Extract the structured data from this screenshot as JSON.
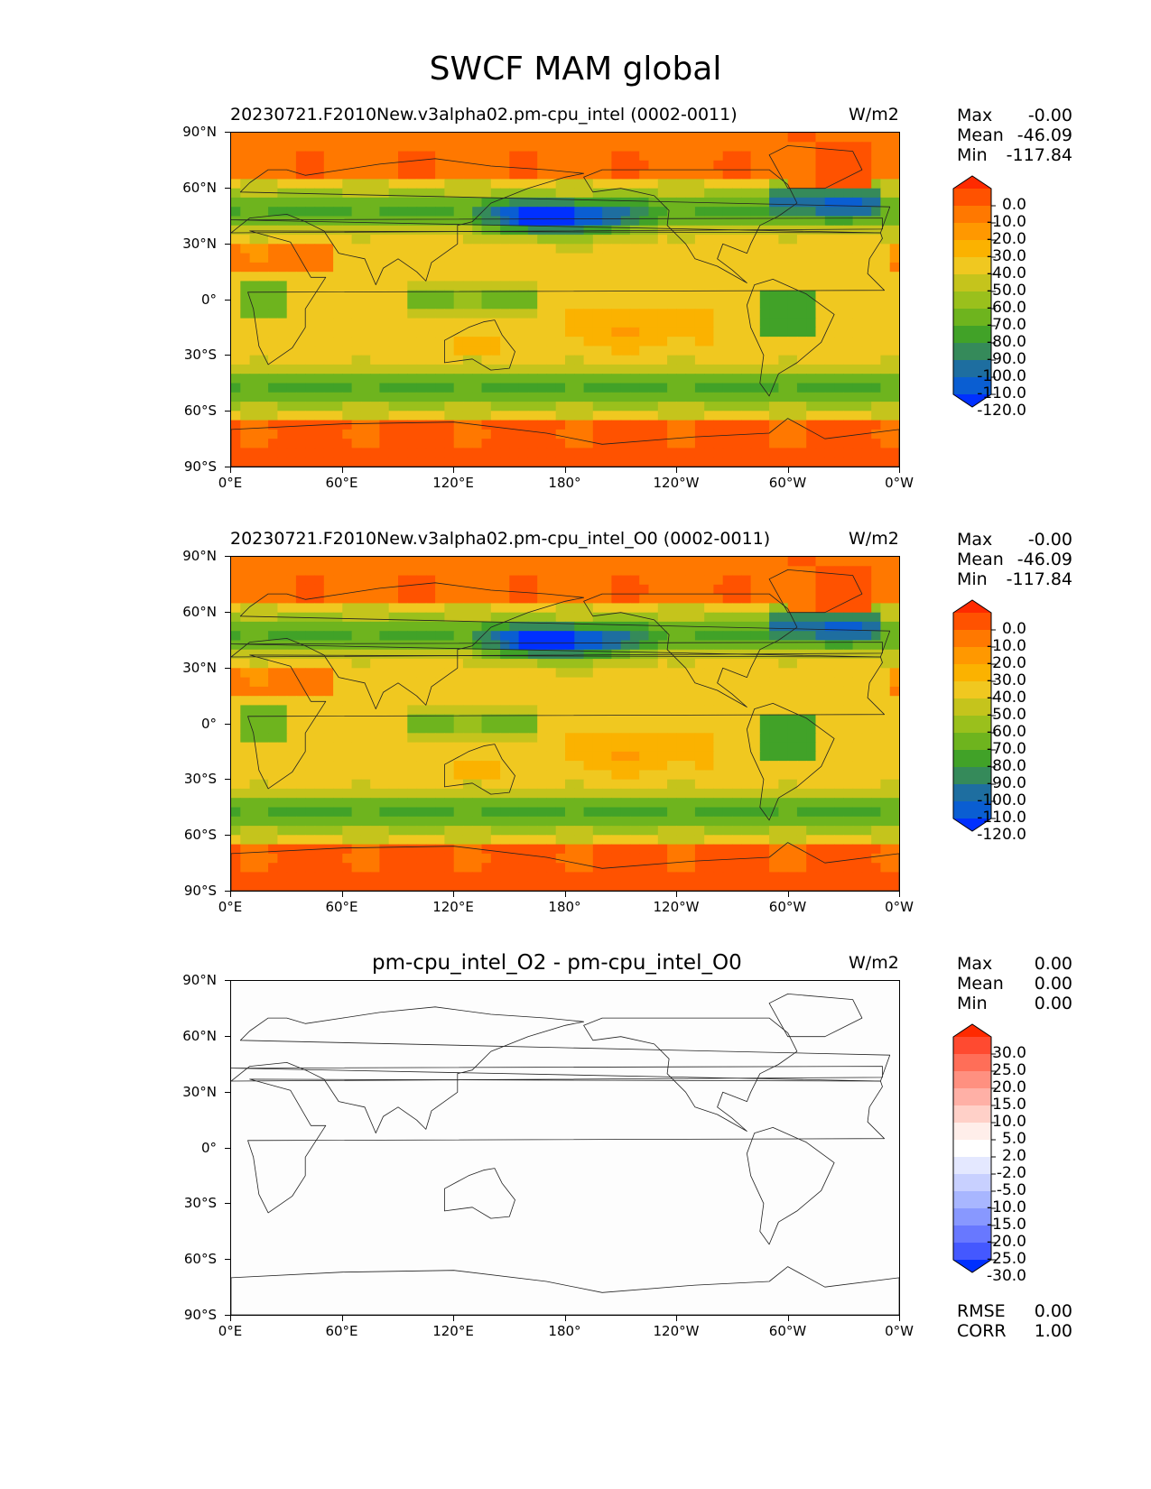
{
  "figure": {
    "title": "SWCF MAM global"
  },
  "chart_data": [
    {
      "type": "heatmap",
      "title": "20230721.F2010New.v3alpha02.pm-cpu_intel (0002-0011)",
      "units": "W/m2",
      "stats": {
        "max_label": "Max",
        "max": "-0.00",
        "mean_label": "Mean",
        "mean": "-46.09",
        "min_label": "Min",
        "min": "-117.84"
      },
      "lat_ticks": [
        "90°N",
        "60°N",
        "30°N",
        "0°",
        "30°S",
        "60°S",
        "90°S"
      ],
      "lon_ticks": [
        "0°E",
        "60°E",
        "120°E",
        "180°",
        "120°W",
        "60°W",
        "0°W"
      ],
      "xlim": [
        0,
        360
      ],
      "ylim": [
        -90,
        90
      ],
      "colorbar": {
        "levels": [
          "0.0",
          "-10.0",
          "-20.0",
          "-30.0",
          "-40.0",
          "-50.0",
          "-60.0",
          "-70.0",
          "-80.0",
          "-90.0",
          "-100.0",
          "-110.0",
          "-120.0"
        ],
        "colors": [
          "#ff2a00",
          "#ff5200",
          "#ff7800",
          "#ff9800",
          "#fbb200",
          "#f0c820",
          "#c5c41c",
          "#9ac01c",
          "#6eb41e",
          "#41a228",
          "#358a5a",
          "#1e6ea0",
          "#0a5ed2",
          "#0030ff"
        ]
      }
    },
    {
      "type": "heatmap",
      "title": "20230721.F2010New.v3alpha02.pm-cpu_intel_O0 (0002-0011)",
      "units": "W/m2",
      "stats": {
        "max_label": "Max",
        "max": "-0.00",
        "mean_label": "Mean",
        "mean": "-46.09",
        "min_label": "Min",
        "min": "-117.84"
      },
      "lat_ticks": [
        "90°N",
        "60°N",
        "30°N",
        "0°",
        "30°S",
        "60°S",
        "90°S"
      ],
      "lon_ticks": [
        "0°E",
        "60°E",
        "120°E",
        "180°",
        "120°W",
        "60°W",
        "0°W"
      ],
      "xlim": [
        0,
        360
      ],
      "ylim": [
        -90,
        90
      ],
      "colorbar": {
        "levels": [
          "0.0",
          "-10.0",
          "-20.0",
          "-30.0",
          "-40.0",
          "-50.0",
          "-60.0",
          "-70.0",
          "-80.0",
          "-90.0",
          "-100.0",
          "-110.0",
          "-120.0"
        ],
        "colors": [
          "#ff2a00",
          "#ff5200",
          "#ff7800",
          "#ff9800",
          "#fbb200",
          "#f0c820",
          "#c5c41c",
          "#9ac01c",
          "#6eb41e",
          "#41a228",
          "#358a5a",
          "#1e6ea0",
          "#0a5ed2",
          "#0030ff"
        ]
      }
    },
    {
      "type": "heatmap",
      "title": "pm-cpu_intel_O2 - pm-cpu_intel_O0",
      "units": "W/m2",
      "stats": {
        "max_label": "Max",
        "max": "0.00",
        "mean_label": "Mean",
        "mean": "0.00",
        "min_label": "Min",
        "min": "0.00"
      },
      "extra": {
        "rmse_label": "RMSE",
        "rmse": "0.00",
        "corr_label": "CORR",
        "corr": "1.00"
      },
      "lat_ticks": [
        "90°N",
        "60°N",
        "30°N",
        "0°",
        "30°S",
        "60°S",
        "90°S"
      ],
      "lon_ticks": [
        "0°E",
        "60°E",
        "120°E",
        "180°",
        "120°W",
        "60°W",
        "0°W"
      ],
      "xlim": [
        0,
        360
      ],
      "ylim": [
        -90,
        90
      ],
      "colorbar": {
        "levels": [
          "30.0",
          "25.0",
          "20.0",
          "15.0",
          "10.0",
          "5.0",
          "2.0",
          "-2.0",
          "-5.0",
          "-10.0",
          "-15.0",
          "-20.0",
          "-25.0",
          "-30.0"
        ],
        "colors": [
          "#ff2a00",
          "#ff4a30",
          "#ff6e58",
          "#ff9080",
          "#ffb0a6",
          "#ffd0c8",
          "#ffeeea",
          "#ffffff",
          "#e4e8ff",
          "#c8d0ff",
          "#a8b6ff",
          "#8898ff",
          "#6878ff",
          "#4458ff",
          "#0030ff"
        ]
      }
    }
  ]
}
